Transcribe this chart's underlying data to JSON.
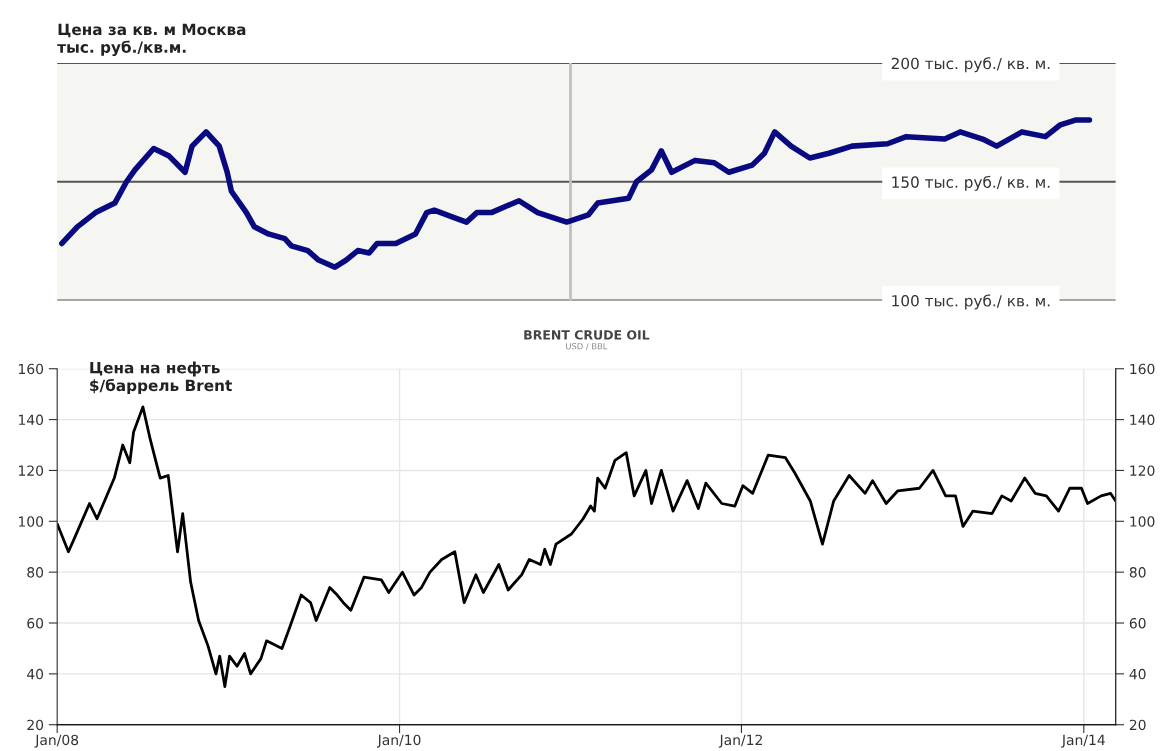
{
  "chart_data": [
    {
      "type": "line",
      "title": "Цена за кв. м Москва\nтыс. руб./кв.м.",
      "x": [
        "2008-01-11",
        "2008-02-13",
        "2008-03-23",
        "2008-05-03",
        "2008-05-28",
        "2008-06-15",
        "2008-07-25",
        "2008-08-26",
        "2008-09-30",
        "2008-10-15",
        "2008-11-14",
        "2008-12-12",
        "2008-12-29",
        "2009-01-07",
        "2009-02-08",
        "2009-02-25",
        "2009-03-27",
        "2009-05-01",
        "2009-05-15",
        "2009-06-19",
        "2009-07-12",
        "2009-08-16",
        "2009-09-09",
        "2009-10-04",
        "2009-10-28",
        "2009-11-14",
        "2009-12-24",
        "2010-02-04",
        "2010-02-28",
        "2010-03-16",
        "2010-04-26",
        "2010-05-24",
        "2010-06-15",
        "2010-07-16",
        "2010-09-13",
        "2010-10-23",
        "2010-12-24",
        "2011-02-08",
        "2011-02-28",
        "2011-05-05",
        "2011-05-22",
        "2011-06-23",
        "2011-07-14",
        "2011-08-05",
        "2011-09-24",
        "2011-11-04",
        "2011-12-05",
        "2012-01-24",
        "2012-02-19",
        "2012-03-12",
        "2012-04-16",
        "2012-05-26",
        "2012-07-06",
        "2012-08-24",
        "2012-11-08",
        "2012-12-18",
        "2013-03-10",
        "2013-04-12",
        "2013-05-30",
        "2013-06-29",
        "2013-08-22",
        "2013-10-11",
        "2013-11-12",
        "2013-12-14",
        "2014-01-13"
      ],
      "series": [
        {
          "color": "#0a0a80",
          "values": [
            124,
            131,
            137,
            141,
            150,
            155,
            164,
            161,
            154,
            165,
            171,
            165,
            154,
            146,
            137,
            131,
            128,
            126,
            123,
            121,
            117,
            114,
            117,
            121,
            120,
            124,
            124,
            128,
            137,
            138,
            135,
            133,
            137,
            137,
            142,
            137,
            133,
            136,
            141,
            143,
            150,
            155,
            163,
            154,
            159,
            158,
            154,
            157,
            162,
            171,
            165,
            160,
            162,
            165,
            166,
            169,
            168,
            171,
            168,
            165,
            171,
            169,
            174,
            176,
            176
          ]
        }
      ],
      "xlim": [
        "2008-01-01",
        "2014-03-10"
      ],
      "ylim": [
        100,
        200
      ],
      "yticks": [
        {
          "value": 100,
          "label": "100 тыс. руб./ кв. м."
        },
        {
          "value": 150,
          "label": "150 тыс. руб./ кв. м."
        },
        {
          "value": 200,
          "label": "200 тыс. руб./ кв. м."
        }
      ],
      "grid": "y",
      "tick_labels": "y",
      "ref_lines": [
        {
          "axis": "x",
          "value": "2011-01-01",
          "color": "#c0c0c0"
        }
      ]
    },
    {
      "type": "line",
      "title": "BRENT CRUDE OIL",
      "subtitle": "USD / BBL",
      "annotations": [
        "Цена на нефть\n$/баррель Brent"
      ],
      "x": [
        "2008-01-01",
        "2008-01-25",
        "2008-02-06",
        "2008-03-10",
        "2008-03-26",
        "2008-05-02",
        "2008-05-20",
        "2008-06-04",
        "2008-06-12",
        "2008-07-02",
        "2008-07-18",
        "2008-08-08",
        "2008-08-25",
        "2008-09-14",
        "2008-09-25",
        "2008-10-12",
        "2008-10-29",
        "2008-11-18",
        "2008-12-05",
        "2008-12-13",
        "2008-12-24",
        "2009-01-03",
        "2009-01-19",
        "2009-02-04",
        "2009-02-17",
        "2009-03-11",
        "2009-03-23",
        "2009-04-25",
        "2009-05-11",
        "2009-06-05",
        "2009-06-25",
        "2009-07-07",
        "2009-08-05",
        "2009-08-21",
        "2009-09-03",
        "2009-09-19",
        "2009-10-17",
        "2009-11-23",
        "2009-12-09",
        "2010-01-07",
        "2010-02-01",
        "2010-02-17",
        "2010-03-07",
        "2010-04-01",
        "2010-04-29",
        "2010-05-19",
        "2010-06-13",
        "2010-06-29",
        "2010-08-01",
        "2010-08-21",
        "2010-09-19",
        "2010-10-05",
        "2010-10-29",
        "2010-11-07",
        "2010-11-19",
        "2010-12-01",
        "2011-01-03",
        "2011-01-28",
        "2011-02-13",
        "2011-02-21",
        "2011-02-28",
        "2011-03-16",
        "2011-04-06",
        "2011-04-30",
        "2011-05-17",
        "2011-06-11",
        "2011-06-23",
        "2011-07-14",
        "2011-08-08",
        "2011-09-07",
        "2011-10-01",
        "2011-10-17",
        "2011-11-20",
        "2011-12-18",
        "2012-01-04",
        "2012-01-25",
        "2012-02-27",
        "2012-04-04",
        "2012-04-24",
        "2012-05-27",
        "2012-06-22",
        "2012-07-16",
        "2012-08-18",
        "2012-09-21",
        "2012-10-07",
        "2012-11-05",
        "2012-11-30",
        "2013-01-15",
        "2013-02-13",
        "2013-03-12",
        "2013-04-02",
        "2013-04-18",
        "2013-05-09",
        "2013-06-19",
        "2013-07-10",
        "2013-07-30",
        "2013-08-28",
        "2013-09-19",
        "2013-10-13",
        "2013-11-08",
        "2013-12-02",
        "2013-12-27",
        "2014-01-09",
        "2014-02-07",
        "2014-02-27",
        "2014-03-10"
      ],
      "series": [
        {
          "color": "#000000",
          "values": [
            99,
            88,
            93,
            107,
            101,
            117,
            130,
            123,
            135,
            145,
            132,
            117,
            118,
            88,
            103,
            76,
            61,
            51,
            40,
            47,
            35,
            47,
            43,
            48,
            40,
            46,
            53,
            50,
            58,
            71,
            68,
            61,
            74,
            71,
            68,
            65,
            78,
            77,
            72,
            80,
            71,
            74,
            80,
            85,
            88,
            68,
            79,
            72,
            83,
            73,
            79,
            85,
            83,
            89,
            83,
            91,
            95,
            101,
            106,
            104,
            117,
            113,
            124,
            127,
            110,
            120,
            107,
            120,
            104,
            116,
            105,
            115,
            107,
            106,
            114,
            111,
            126,
            125,
            119,
            108,
            91,
            108,
            118,
            111,
            116,
            107,
            112,
            113,
            120,
            110,
            110,
            98,
            104,
            103,
            110,
            108,
            117,
            111,
            110,
            104,
            113,
            113,
            107,
            110,
            111,
            108
          ]
        }
      ],
      "xlim": [
        "2008-01-01",
        "2014-03-10"
      ],
      "xticks": [
        {
          "value": "2008-01-01",
          "label": "Jan/08"
        },
        {
          "value": "2010-01-01",
          "label": "Jan/10"
        },
        {
          "value": "2012-01-01",
          "label": "Jan/12"
        },
        {
          "value": "2014-01-01",
          "label": "Jan/14"
        }
      ],
      "ylim": [
        20,
        160
      ],
      "yticks": [
        20,
        40,
        60,
        80,
        100,
        120,
        140,
        160
      ],
      "y2lim": [
        20,
        160
      ],
      "y2ticks": [
        20,
        40,
        60,
        80,
        100,
        120,
        140,
        160
      ],
      "grid": true
    }
  ]
}
